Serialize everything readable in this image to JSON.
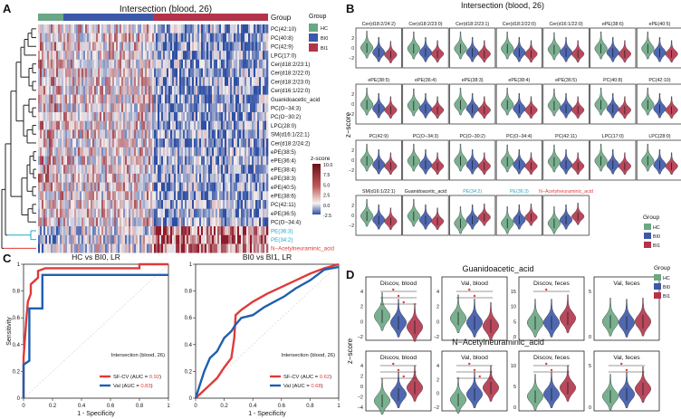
{
  "panel_letters": {
    "a": "A",
    "b": "B",
    "c": "C",
    "d": "D"
  },
  "colors": {
    "hc": "#6aa784",
    "bi0": "#3c58a8",
    "bi1": "#b3344a",
    "red": "#e03a3a",
    "cyan": "#22a9c9",
    "heat_low": "#2f4fa0",
    "heat_mid": "#f7f2f0",
    "heat_high": "#6b0f1a"
  },
  "A": {
    "title": "Intersection (blood, 26)",
    "group_label": "Group",
    "legend_title": "Group",
    "legend": [
      "HC",
      "BI0",
      "BI1"
    ],
    "zscore_title": "z-score",
    "zscore_ticks": [
      "10.0",
      "7.5",
      "5.0",
      "2.5",
      "0.0",
      "-2.5"
    ],
    "rows": [
      "PC(42:10)",
      "PC(40:8)",
      "PC(42:9)",
      "LPC(17:0)",
      "Cer(d18:2/23:1)",
      "Cer(d18:2/22:0)",
      "Cer(d18:2/23:0)",
      "Cer(d16:1/22:0)",
      "Guanidoacetic_acid",
      "PC(O−34:3)",
      "PC(O−30:2)",
      "LPC(28:0)",
      "SM(d16:1/22:1)",
      "Cer(d18:2/24:2)",
      "ePE(38:5)",
      "ePE(36:4)",
      "ePE(38:4)",
      "ePE(38:3)",
      "ePE(40:5)",
      "ePE(38:6)",
      "PC(42:11)",
      "ePE(36:5)",
      "PC(O−34:4)",
      "PE(36:3)",
      "PE(34:2)",
      "N−Acetylneuraminic_acid"
    ]
  },
  "B": {
    "title": "Intersection (blood, 26)",
    "ylabel": "z−score",
    "legend_title": "Group",
    "legend": [
      "HC",
      "BI0",
      "BI1"
    ],
    "panels": [
      {
        "name": "Cer(d18:2/24:2)",
        "color": "#111111",
        "medians": [
          0.6,
          0.0,
          -0.3
        ]
      },
      {
        "name": "Cer(d18:2/23:0)",
        "color": "#111111",
        "medians": [
          0.5,
          0.0,
          -0.2
        ]
      },
      {
        "name": "Cer(d18:2/23:1)",
        "color": "#111111",
        "medians": [
          0.5,
          0.0,
          -0.2
        ]
      },
      {
        "name": "Cer(d18:2/22:0)",
        "color": "#111111",
        "medians": [
          0.5,
          0.0,
          -0.2
        ]
      },
      {
        "name": "Cer(d16:1/22:0)",
        "color": "#111111",
        "medians": [
          0.4,
          0.0,
          -0.2
        ]
      },
      {
        "name": "ePE(38:6)",
        "color": "#111111",
        "medians": [
          0.5,
          0.0,
          -0.2
        ]
      },
      {
        "name": "ePE(40:5)",
        "color": "#111111",
        "medians": [
          0.5,
          0.0,
          -0.2
        ]
      },
      {
        "name": "ePE(38:5)",
        "color": "#111111",
        "medians": [
          0.5,
          0.0,
          -0.2
        ]
      },
      {
        "name": "ePE(36:4)",
        "color": "#111111",
        "medians": [
          0.4,
          0.0,
          -0.2
        ]
      },
      {
        "name": "ePE(38:3)",
        "color": "#111111",
        "medians": [
          0.5,
          0.0,
          -0.2
        ]
      },
      {
        "name": "ePE(38:4)",
        "color": "#111111",
        "medians": [
          0.5,
          0.0,
          -0.2
        ]
      },
      {
        "name": "ePE(36:5)",
        "color": "#111111",
        "medians": [
          0.4,
          0.0,
          -0.2
        ]
      },
      {
        "name": "PC(40:8)",
        "color": "#111111",
        "medians": [
          0.5,
          0.0,
          -0.2
        ]
      },
      {
        "name": "PC(42:10)",
        "color": "#111111",
        "medians": [
          0.5,
          0.0,
          -0.2
        ]
      },
      {
        "name": "PC(42:9)",
        "color": "#111111",
        "medians": [
          0.5,
          0.0,
          -0.2
        ]
      },
      {
        "name": "PC(O−34:3)",
        "color": "#111111",
        "medians": [
          0.5,
          0.0,
          -0.2
        ]
      },
      {
        "name": "PC(O−30:2)",
        "color": "#111111",
        "medians": [
          0.5,
          0.0,
          -0.2
        ]
      },
      {
        "name": "PC(O−34:4)",
        "color": "#111111",
        "medians": [
          0.4,
          0.0,
          -0.2
        ]
      },
      {
        "name": "PC(42:11)",
        "color": "#111111",
        "medians": [
          0.4,
          0.0,
          -0.2
        ]
      },
      {
        "name": "LPC(17:0)",
        "color": "#111111",
        "medians": [
          0.5,
          0.0,
          -0.2
        ]
      },
      {
        "name": "LPC(28:0)",
        "color": "#111111",
        "medians": [
          0.5,
          0.0,
          -0.2
        ]
      },
      {
        "name": "SM(d16:1/22:1)",
        "color": "#111111",
        "medians": [
          0.5,
          0.0,
          -0.2
        ]
      },
      {
        "name": "Guanidoacetic_acid",
        "color": "#111111",
        "medians": [
          0.5,
          0.0,
          -0.2
        ]
      },
      {
        "name": "PE(34:2)",
        "color": "#22a9c9",
        "medians": [
          -0.4,
          0.0,
          0.3
        ]
      },
      {
        "name": "PE(36:3)",
        "color": "#22a9c9",
        "medians": [
          -0.4,
          0.0,
          0.3
        ]
      },
      {
        "name": "N−Acetylneuraminic_acid",
        "color": "#e03a3a",
        "medians": [
          -0.4,
          0.0,
          0.4
        ]
      }
    ]
  },
  "C": {
    "xlabel": "1 - Specificity",
    "ylabel": "Sensitivity",
    "ticks": [
      "0",
      "0.2",
      "0.4",
      "0.6",
      "0.8",
      "1"
    ],
    "plots": [
      {
        "title": "HC vs BI0, LR",
        "annotation": "Intersection (blood, 26)",
        "legend": [
          {
            "name": "SF-CV (AUC = ",
            "auc": "0.92",
            "color": "#e03a3a"
          },
          {
            "name": "Val (AUC = ",
            "auc": "0.83",
            "color": "#1f5fae"
          }
        ],
        "close_paren": ")",
        "series": [
          {
            "name": "SF-CV",
            "color": "#e03a3a",
            "x": [
              0,
              0,
              0.02,
              0.03,
              0.05,
              0.05,
              0.1,
              0.1,
              0.15,
              0.4,
              0.8,
              0.8,
              1.0
            ],
            "y": [
              0,
              0.3,
              0.6,
              0.72,
              0.78,
              0.85,
              0.9,
              0.95,
              0.97,
              0.97,
              0.97,
              1.0,
              1.0
            ]
          },
          {
            "name": "Val",
            "color": "#1f5fae",
            "x": [
              0,
              0,
              0.04,
              0.04,
              0.13,
              0.13,
              0.2,
              0.4,
              0.8,
              0.8,
              1.0
            ],
            "y": [
              0,
              0.25,
              0.28,
              0.67,
              0.67,
              0.92,
              0.92,
              0.92,
              0.92,
              0.92,
              0.92
            ]
          }
        ]
      },
      {
        "title": "BI0 vs BI1, LR",
        "annotation": "Intersection (blood, 26)",
        "legend": [
          {
            "name": "SF-CV (AUC = ",
            "auc": "0.62",
            "color": "#e03a3a"
          },
          {
            "name": "Val (AUC = ",
            "auc": "0.68",
            "color": "#1f5fae"
          }
        ],
        "close_paren": ")",
        "series": [
          {
            "name": "SF-CV",
            "color": "#e03a3a",
            "x": [
              0,
              0.05,
              0.1,
              0.15,
              0.2,
              0.25,
              0.27,
              0.28,
              0.32,
              0.4,
              0.5,
              0.6,
              0.7,
              0.8,
              0.9,
              1.0
            ],
            "y": [
              0,
              0.05,
              0.1,
              0.15,
              0.23,
              0.3,
              0.45,
              0.62,
              0.66,
              0.72,
              0.78,
              0.83,
              0.88,
              0.93,
              0.97,
              1.0
            ]
          },
          {
            "name": "Val",
            "color": "#1f5fae",
            "x": [
              0,
              0.03,
              0.06,
              0.1,
              0.15,
              0.2,
              0.25,
              0.28,
              0.32,
              0.4,
              0.48,
              0.55,
              0.62,
              0.7,
              0.8,
              0.9,
              1.0
            ],
            "y": [
              0,
              0.1,
              0.2,
              0.3,
              0.35,
              0.45,
              0.5,
              0.55,
              0.6,
              0.62,
              0.68,
              0.72,
              0.76,
              0.82,
              0.88,
              0.96,
              0.98
            ]
          }
        ]
      }
    ]
  },
  "D": {
    "ylabel": "z−score",
    "legend_title": "Group",
    "legend": [
      "HC",
      "BI0",
      "BI1"
    ],
    "metabolites": [
      {
        "title": "Guanidoacetic_acid",
        "panels": [
          {
            "title": "Discov, blood",
            "yticks": [
              "4",
              "2",
              "0",
              "−2"
            ],
            "medians": [
              0.6,
              0.0,
              -0.4
            ],
            "sig": 3
          },
          {
            "title": "Val, blood",
            "yticks": [
              "4",
              "2",
              "0",
              "−2"
            ],
            "medians": [
              0.4,
              0.0,
              -0.3
            ],
            "sig": 2
          },
          {
            "title": "Discov, feces",
            "yticks": [
              "15",
              "10",
              "5",
              "0"
            ],
            "medians": [
              0.0,
              0.0,
              0.4
            ],
            "sig": 1
          },
          {
            "title": "Val, feces",
            "yticks": [
              "5",
              "0"
            ],
            "medians": [
              0.1,
              0.0,
              0.1
            ],
            "sig": 0
          }
        ]
      },
      {
        "title": "N−Acetylneuraminic_acid",
        "panels": [
          {
            "title": "Discov, blood",
            "yticks": [
              "4",
              "2",
              "0",
              "−2",
              "−4"
            ],
            "medians": [
              -0.6,
              0.0,
              0.6
            ],
            "sig": 3
          },
          {
            "title": "Val, blood",
            "yticks": [
              "4",
              "2",
              "0",
              "−2"
            ],
            "medians": [
              -0.5,
              0.0,
              0.6
            ],
            "sig": 3
          },
          {
            "title": "Discov, feces",
            "yticks": [
              "10",
              "5",
              "0"
            ],
            "medians": [
              -0.2,
              0.0,
              0.6
            ],
            "sig": 2
          },
          {
            "title": "Val, feces",
            "yticks": [
              "5",
              "0"
            ],
            "medians": [
              -0.2,
              0.0,
              0.5
            ],
            "sig": 2
          }
        ]
      }
    ]
  },
  "chart_data": [
    {
      "type": "heatmap",
      "title": "Intersection (blood, 26)",
      "groups": [
        "HC",
        "BI0",
        "BI1"
      ],
      "color_range": [
        -2.5,
        10.0
      ],
      "rows": 26
    },
    {
      "type": "line",
      "title": "HC vs BI0, LR",
      "xlabel": "1 - Specificity",
      "ylabel": "Sensitivity",
      "xlim": [
        0,
        1
      ],
      "ylim": [
        0,
        1
      ],
      "series": [
        {
          "name": "SF-CV",
          "auc": 0.92
        },
        {
          "name": "Val",
          "auc": 0.83
        }
      ]
    },
    {
      "type": "line",
      "title": "BI0 vs BI1, LR",
      "xlabel": "1 - Specificity",
      "ylabel": "Sensitivity",
      "xlim": [
        0,
        1
      ],
      "ylim": [
        0,
        1
      ],
      "series": [
        {
          "name": "SF-CV",
          "auc": 0.62
        },
        {
          "name": "Val",
          "auc": 0.68
        }
      ]
    }
  ]
}
